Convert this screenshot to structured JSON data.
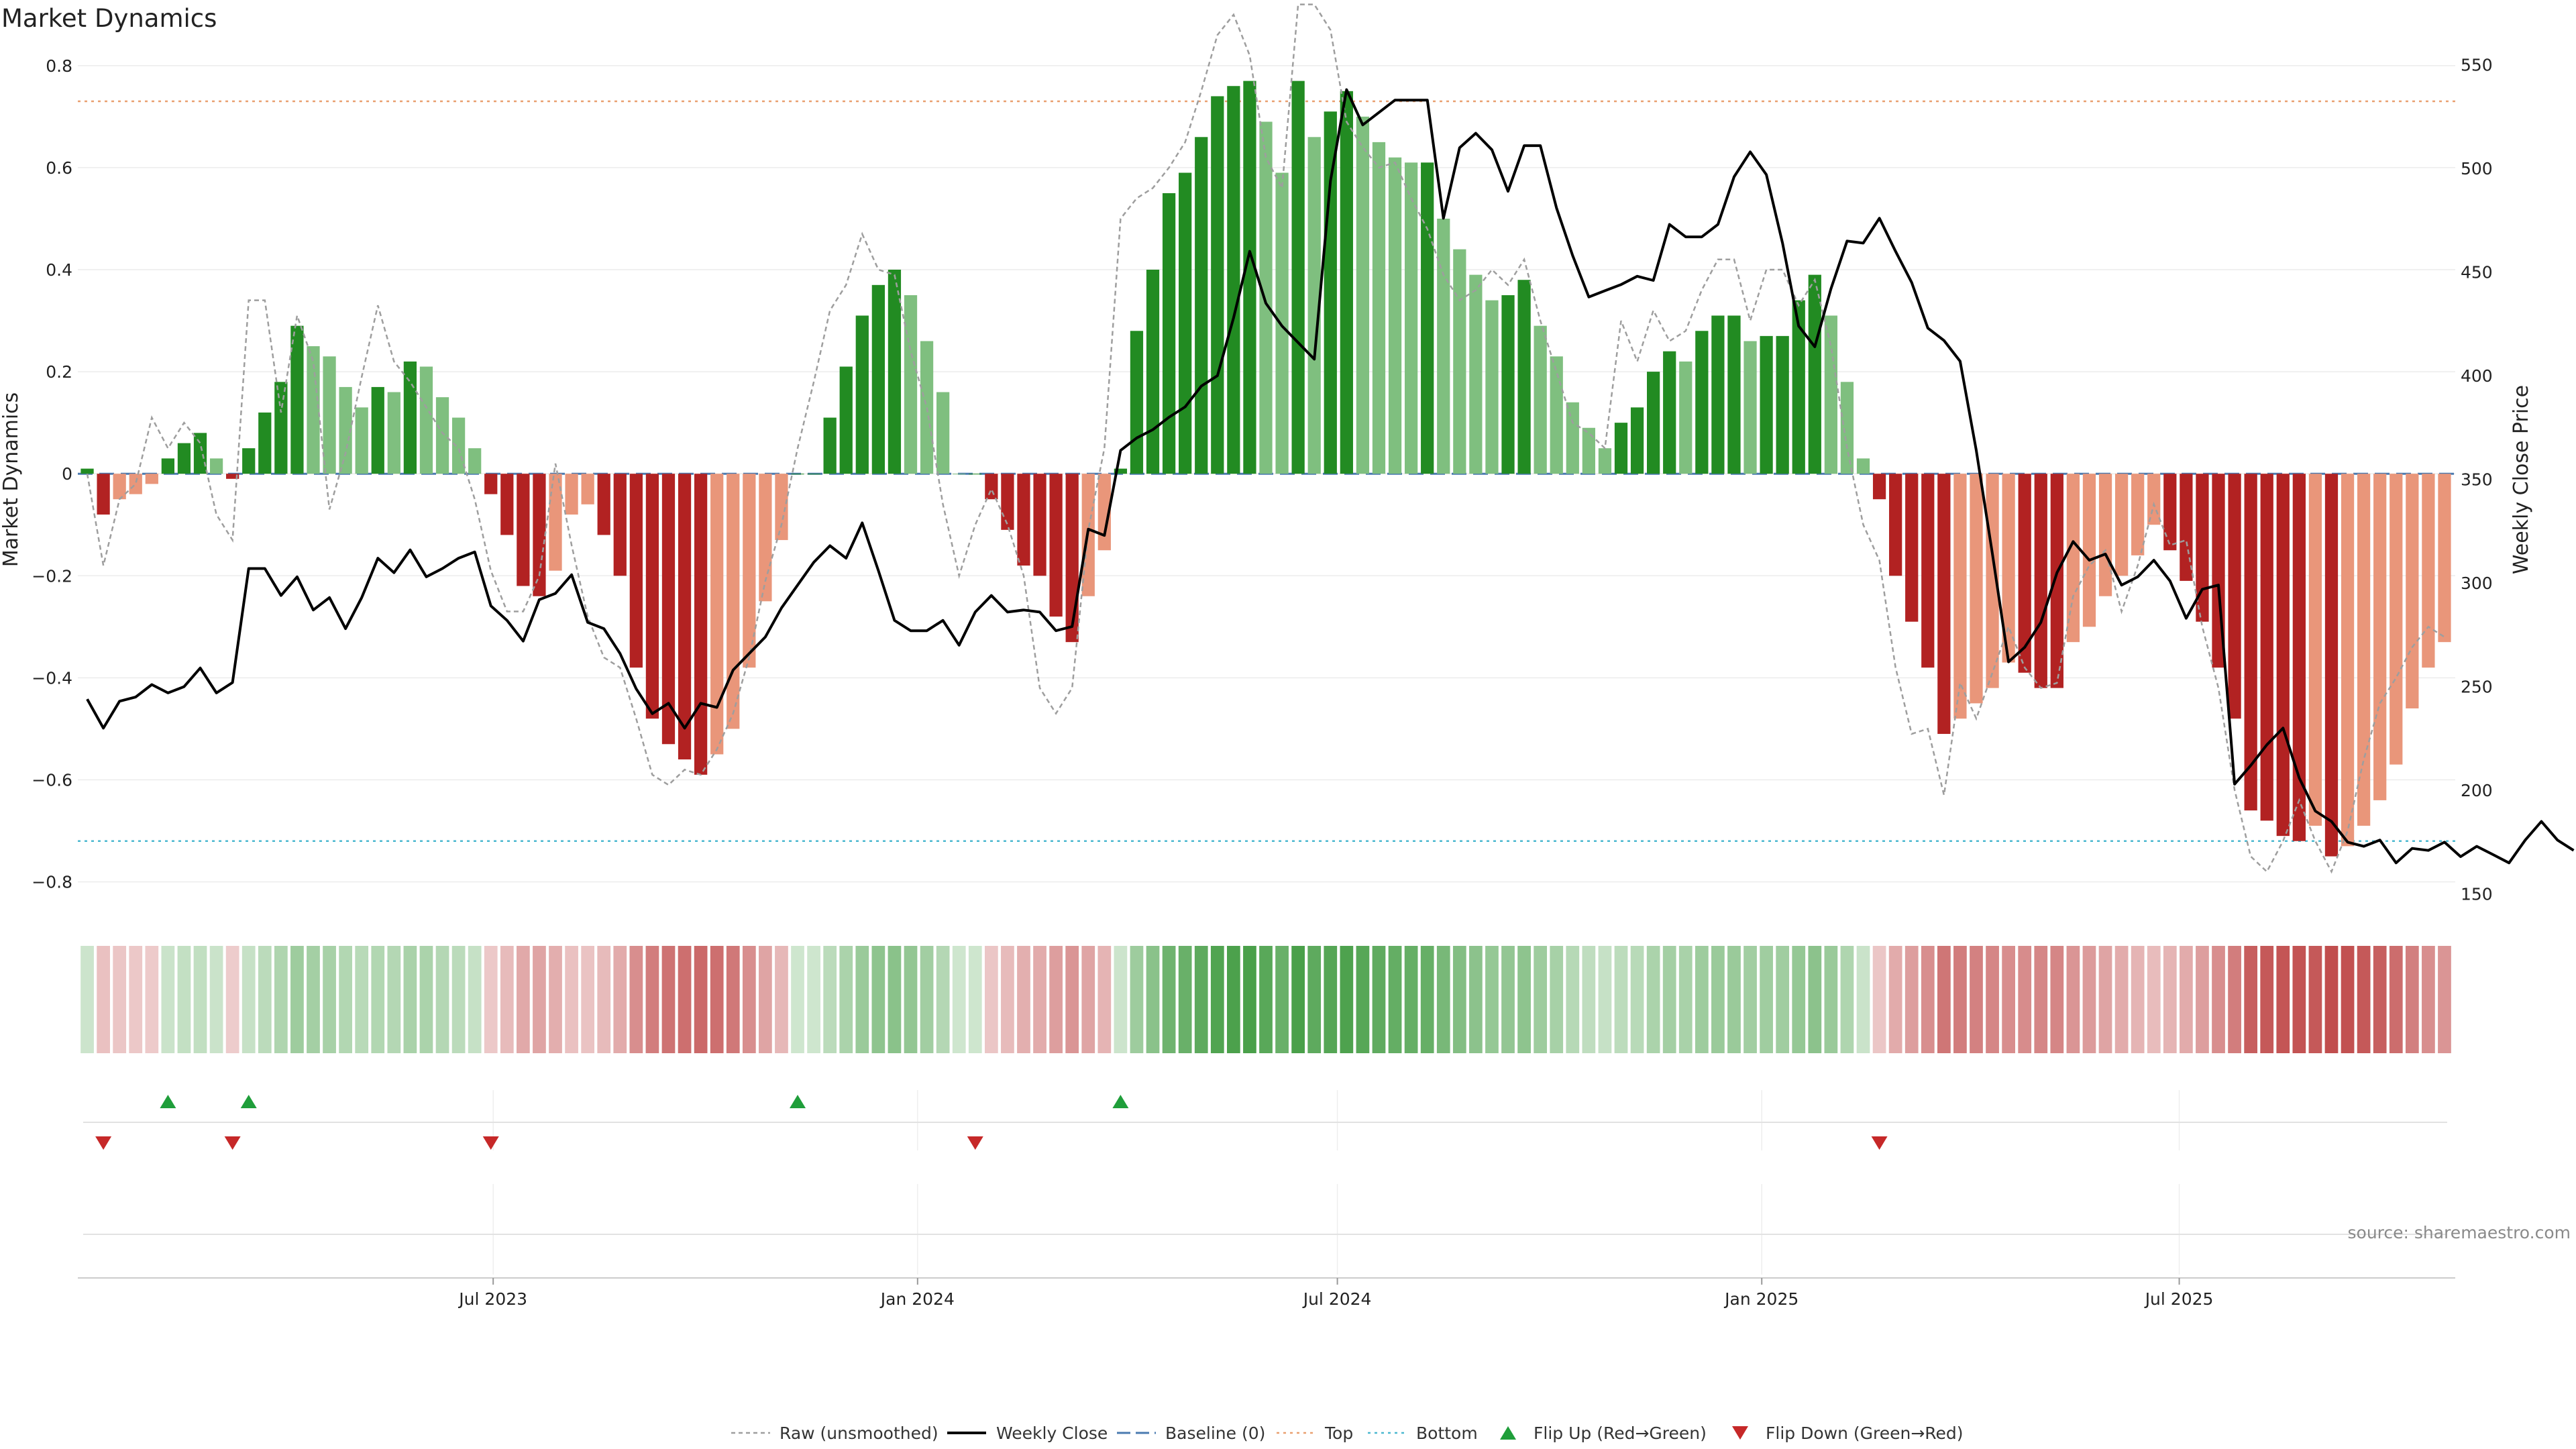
{
  "chart_data": {
    "type": "bar",
    "title": "Market Dynamics",
    "ylabel": "Market Dynamics",
    "y2label": "Weekly Close Price",
    "ylim": [
      -0.84,
      0.83
    ],
    "y2lim": [
      146,
      557
    ],
    "yticks": [
      0.8,
      0.6,
      0.4,
      0.2,
      0,
      -0.2,
      -0.4,
      -0.6,
      -0.8
    ],
    "ytick_labels": [
      "0.8",
      "0.6",
      "0.4",
      "0.2",
      "0",
      "−0.2",
      "−0.4",
      "−0.6",
      "−0.8"
    ],
    "y2ticks": [
      550,
      500,
      450,
      400,
      350,
      300,
      250,
      200,
      150
    ],
    "x_start": "2023-01-06",
    "date_ticks": [
      {
        "date": "2023-07-01",
        "label": "Jul 2023"
      },
      {
        "date": "2024-01-01",
        "label": "Jan 2024"
      },
      {
        "date": "2024-07-01",
        "label": "Jul 2024"
      },
      {
        "date": "2025-01-01",
        "label": "Jan 2025"
      },
      {
        "date": "2025-07-01",
        "label": "Jul 2025"
      }
    ],
    "top_line": 0.73,
    "bottom_line": -0.72,
    "baseline": 0,
    "dynamics": [
      0.01,
      -0.08,
      -0.05,
      -0.04,
      -0.02,
      0.03,
      0.06,
      0.08,
      0.03,
      -0.01,
      0.05,
      0.12,
      0.18,
      0.29,
      0.25,
      0.23,
      0.17,
      0.13,
      0.17,
      0.16,
      0.22,
      0.21,
      0.15,
      0.11,
      0.05,
      -0.04,
      -0.12,
      -0.22,
      -0.24,
      -0.19,
      -0.08,
      -0.06,
      -0.12,
      -0.2,
      -0.38,
      -0.48,
      -0.53,
      -0.56,
      -0.59,
      -0.55,
      -0.5,
      -0.38,
      -0.25,
      -0.13,
      0,
      0,
      0.11,
      0.21,
      0.31,
      0.37,
      0.4,
      0.35,
      0.26,
      0.16,
      0,
      0,
      -0.05,
      -0.11,
      -0.18,
      -0.2,
      -0.28,
      -0.33,
      -0.24,
      -0.15,
      0.01,
      0.28,
      0.4,
      0.55,
      0.59,
      0.66,
      0.74,
      0.76,
      0.77,
      0.69,
      0.59,
      0.77,
      0.66,
      0.71,
      0.75,
      0.7,
      0.65,
      0.62,
      0.61,
      0.61,
      0.5,
      0.44,
      0.39,
      0.34,
      0.35,
      0.38,
      0.29,
      0.23,
      0.14,
      0.09,
      0.05,
      0.1,
      0.13,
      0.2,
      0.24,
      0.22,
      0.28,
      0.31,
      0.31,
      0.26,
      0.27,
      0.27,
      0.34,
      0.39,
      0.31,
      0.18,
      0.03,
      -0.05,
      -0.2,
      -0.29,
      -0.38,
      -0.51,
      -0.48,
      -0.45,
      -0.42,
      -0.37,
      -0.39,
      -0.42,
      -0.42,
      -0.33,
      -0.3,
      -0.24,
      -0.2,
      -0.16,
      -0.1,
      -0.15,
      -0.21,
      -0.29,
      -0.38,
      -0.48,
      -0.66,
      -0.68,
      -0.71,
      -0.72,
      -0.69,
      -0.75,
      -0.73,
      -0.69,
      -0.64,
      -0.57,
      -0.46,
      -0.38,
      -0.33
    ],
    "series": [
      {
        "name": "Raw (unsmoothed)",
        "values": [
          0.0,
          -0.18,
          -0.05,
          -0.02,
          0.11,
          0.05,
          0.1,
          0.06,
          -0.08,
          -0.13,
          0.34,
          0.34,
          0.12,
          0.31,
          0.22,
          -0.07,
          0.04,
          0.19,
          0.33,
          0.22,
          0.18,
          0.13,
          0.08,
          0.05,
          -0.05,
          -0.19,
          -0.27,
          -0.27,
          -0.2,
          0.02,
          -0.14,
          -0.28,
          -0.36,
          -0.38,
          -0.48,
          -0.59,
          -0.61,
          -0.58,
          -0.59,
          -0.54,
          -0.47,
          -0.36,
          -0.21,
          -0.1,
          0.05,
          0.18,
          0.32,
          0.37,
          0.47,
          0.4,
          0.39,
          0.24,
          0.13,
          -0.06,
          -0.2,
          -0.1,
          -0.03,
          -0.1,
          -0.2,
          -0.42,
          -0.47,
          -0.42,
          -0.11,
          0.05,
          0.5,
          0.54,
          0.56,
          0.6,
          0.65,
          0.75,
          0.86,
          0.9,
          0.82,
          0.62,
          0.56,
          0.92,
          0.92,
          0.87,
          0.69,
          0.64,
          0.6,
          0.61,
          0.54,
          0.48,
          0.39,
          0.34,
          0.36,
          0.4,
          0.37,
          0.42,
          0.3,
          0.2,
          0.1,
          0.08,
          0.05,
          0.3,
          0.22,
          0.32,
          0.26,
          0.28,
          0.36,
          0.42,
          0.42,
          0.3,
          0.4,
          0.4,
          0.33,
          0.38,
          0.25,
          0.05,
          -0.1,
          -0.17,
          -0.38,
          -0.51,
          -0.5,
          -0.63,
          -0.41,
          -0.48,
          -0.39,
          -0.3,
          -0.38,
          -0.42,
          -0.41,
          -0.24,
          -0.18,
          -0.15,
          -0.27,
          -0.18,
          -0.06,
          -0.14,
          -0.13,
          -0.3,
          -0.42,
          -0.62,
          -0.75,
          -0.78,
          -0.72,
          -0.64,
          -0.72,
          -0.78,
          -0.7,
          -0.56,
          -0.45,
          -0.4,
          -0.34,
          -0.3,
          -0.32
        ]
      },
      {
        "name": "Weekly Close",
        "values": [
          244,
          230,
          243,
          245,
          251,
          247,
          250,
          259,
          247,
          252,
          307,
          307,
          294,
          303,
          287,
          293,
          278,
          293,
          312,
          305,
          316,
          303,
          307,
          312,
          315,
          289,
          282,
          272,
          292,
          295,
          304,
          281,
          278,
          266,
          249,
          237,
          242,
          230,
          242,
          240,
          258,
          266,
          274,
          288,
          299,
          310,
          318,
          312,
          329,
          306,
          282,
          277,
          277,
          282,
          270,
          286,
          294,
          286,
          287,
          286,
          277,
          279,
          326,
          323,
          364,
          370,
          374,
          380,
          385,
          395,
          400,
          428,
          460,
          435,
          424,
          416,
          408,
          494,
          538,
          521,
          527,
          533,
          533,
          533,
          476,
          510,
          517,
          509,
          489,
          511,
          511,
          481,
          458,
          438,
          441,
          444,
          448,
          446,
          473,
          467,
          467,
          473,
          496,
          508,
          497,
          464,
          424,
          414,
          442,
          465,
          464,
          476,
          460,
          445,
          423,
          417,
          407,
          364,
          314,
          262,
          269,
          281,
          305,
          320,
          311,
          314,
          299,
          303,
          311,
          301,
          283,
          297,
          299,
          203,
          212,
          222,
          230,
          206,
          190,
          185,
          175,
          173,
          176,
          165,
          172,
          171,
          175,
          168,
          173,
          169,
          165,
          176,
          185,
          176,
          171
        ]
      },
      {
        "name": "Baseline (0)"
      },
      {
        "name": "Top"
      },
      {
        "name": "Bottom"
      },
      {
        "name": "Flip Up (Red→Green)",
        "indices": [
          5,
          10,
          44,
          64
        ]
      },
      {
        "name": "Flip Down (Green→Red)",
        "indices": [
          1,
          9,
          25,
          55,
          111
        ]
      }
    ],
    "grid": true,
    "legend": "bottom-center"
  },
  "source": "source: sharemaestro.com",
  "colors": {
    "strong_green": "#228b22",
    "light_green": "#7fbf7f",
    "strong_red": "#b22222",
    "light_red": "#e9967a",
    "raw_line": "#9e9e9e",
    "close_line": "#000000",
    "baseline": "#4a7ab0",
    "top": "#e9a070",
    "bottom": "#4bb8d0",
    "flip_up": "#1f9e3a",
    "flip_down": "#c62828"
  }
}
